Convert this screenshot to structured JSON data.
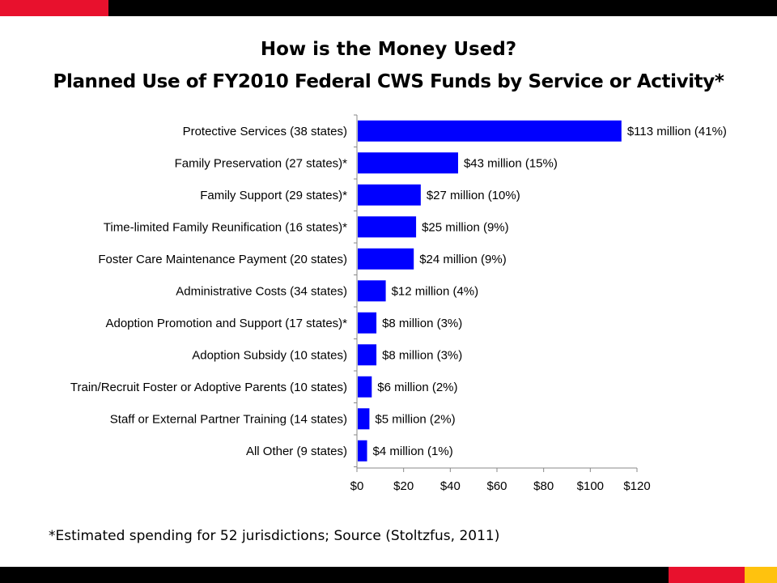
{
  "slide": {
    "title": "How is the Money Used?",
    "subtitle": "Planned Use of FY2010 Federal CWS Funds by Service or Activity*",
    "footnote": "*Estimated spending for 52 jurisdictions;  Source (Stoltzfus, 2011)"
  },
  "colors": {
    "bar": "#0000ff",
    "band_black": "#000000",
    "band_red": "#e8112d",
    "band_yellow": "#ffc20e"
  },
  "chart_data": {
    "type": "bar",
    "orientation": "horizontal",
    "categories": [
      "Protective Services (38 states)",
      "Family Preservation (27 states)*",
      "Family Support (29 states)*",
      "Time-limited Family Reunification (16 states)*",
      "Foster Care Maintenance Payment (20 states)",
      "Administrative Costs (34 states)",
      "Adoption Promotion and Support (17 states)*",
      "Adoption Subsidy (10 states)",
      "Train/Recruit Foster or Adoptive Parents (10 states)",
      "Staff or External Partner Training (14 states)",
      "All Other (9 states)"
    ],
    "values": [
      113,
      43,
      27,
      25,
      24,
      12,
      8,
      8,
      6,
      5,
      4
    ],
    "data_labels": [
      "$113 million (41%)",
      "$43 million (15%)",
      "$27 million (10%)",
      "$25 million (9%)",
      "$24 million (9%)",
      "$12 million (4%)",
      "$8 million (3%)",
      "$8 million (3%)",
      "$6 million (2%)",
      "$5 million (2%)",
      "$4 million (1%)"
    ],
    "xlim": [
      0,
      120
    ],
    "xticks": [
      0,
      20,
      40,
      60,
      80,
      100,
      120
    ],
    "xtick_labels": [
      "$0",
      "$20",
      "$40",
      "$60",
      "$80",
      "$100",
      "$120"
    ],
    "grid": false,
    "legend": "none"
  }
}
